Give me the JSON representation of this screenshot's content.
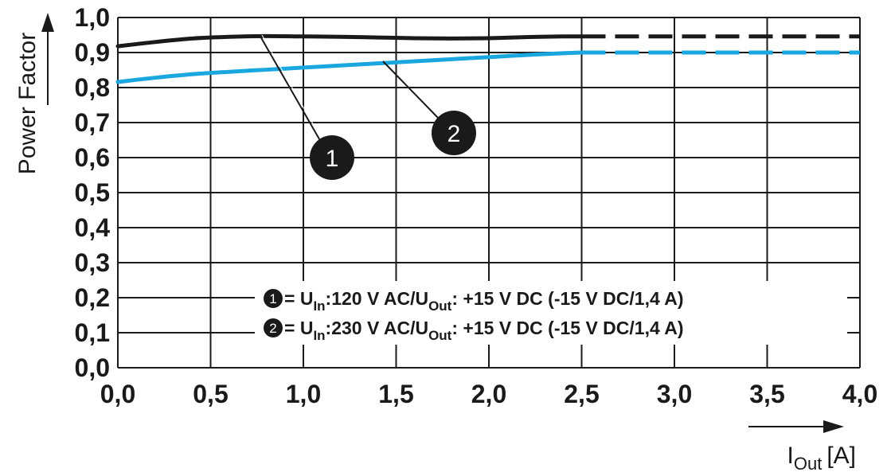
{
  "chart_data": {
    "type": "line",
    "xlabel": "I",
    "xlabel_sub": "Out",
    "xlabel_unit": "[A]",
    "ylabel": "Power Factor",
    "xlim": [
      0,
      4
    ],
    "ylim": [
      0,
      1
    ],
    "grid": true,
    "x_ticks": [
      "0,0",
      "0,5",
      "1,0",
      "1,5",
      "2,0",
      "2,5",
      "3,0",
      "3,5",
      "4,0"
    ],
    "y_ticks": [
      "0,0",
      "0,1",
      "0,2",
      "0,3",
      "0,4",
      "0,5",
      "0,6",
      "0,7",
      "0,8",
      "0,9",
      "1,0"
    ],
    "colors": {
      "series1": "#1a1a1a",
      "series2": "#1aa7e0",
      "grid": "#1a1a1a"
    },
    "series": [
      {
        "callout": "1",
        "legend_lead": " = U",
        "legend_sub1": "In",
        "legend_mid": ":120 V AC/U",
        "legend_sub2": "Out",
        "legend_tail": ": +15 V DC (-15 V DC/1,4 A)",
        "solid_x": [
          0.0,
          0.2,
          0.4,
          0.6,
          0.8,
          1.0,
          1.2,
          1.4,
          1.6,
          1.8,
          2.0,
          2.2,
          2.4,
          2.5
        ],
        "solid_y": [
          0.918,
          0.93,
          0.94,
          0.945,
          0.947,
          0.946,
          0.945,
          0.943,
          0.941,
          0.94,
          0.941,
          0.944,
          0.946,
          0.946
        ],
        "dashed_x": [
          2.5,
          4.0
        ],
        "dashed_y": [
          0.946,
          0.946
        ]
      },
      {
        "callout": "2",
        "legend_lead": " = U",
        "legend_sub1": "In",
        "legend_mid": ":230 V AC/U",
        "legend_sub2": "Out",
        "legend_tail": ": +15 V DC (-15 V DC/1,4 A)",
        "solid_x": [
          0.0,
          0.2,
          0.4,
          0.6,
          0.8,
          1.0,
          1.2,
          1.4,
          1.6,
          1.8,
          2.0,
          2.2,
          2.4,
          2.5
        ],
        "solid_y": [
          0.816,
          0.828,
          0.838,
          0.845,
          0.851,
          0.857,
          0.863,
          0.869,
          0.875,
          0.881,
          0.887,
          0.893,
          0.898,
          0.9
        ],
        "dashed_x": [
          2.5,
          4.0
        ],
        "dashed_y": [
          0.9,
          0.9
        ]
      }
    ]
  }
}
